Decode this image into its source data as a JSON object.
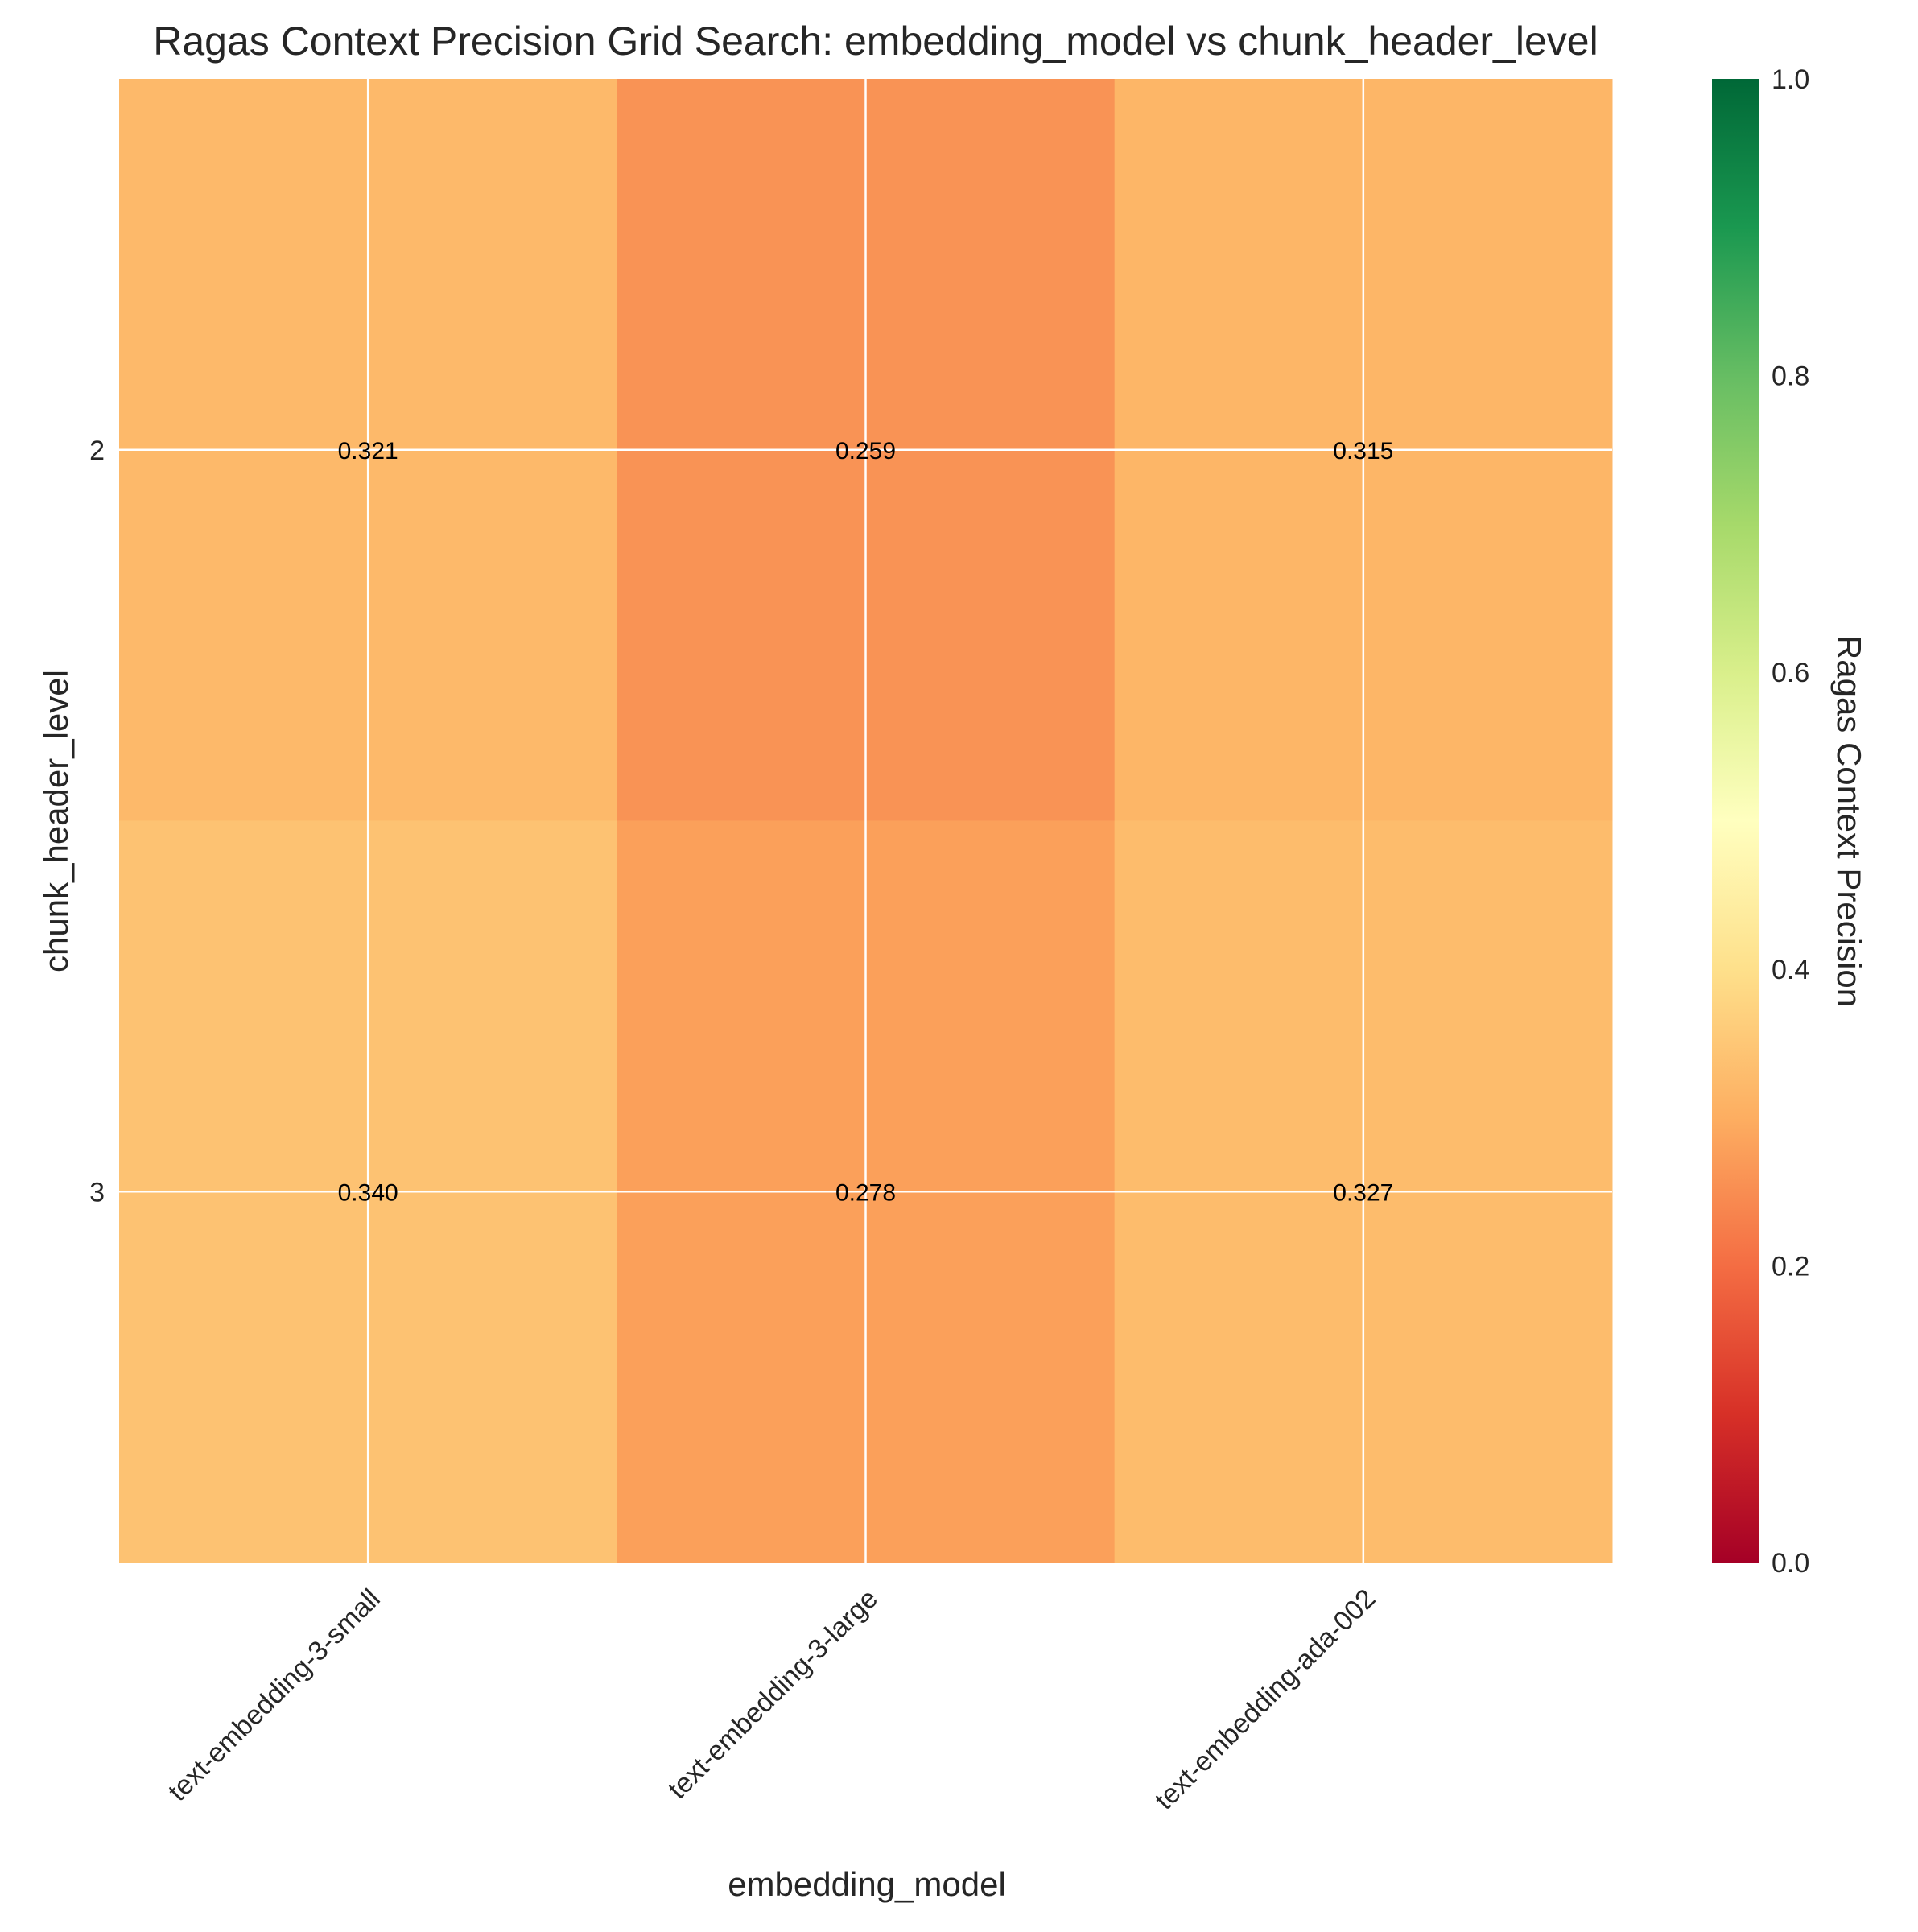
{
  "chart_data": {
    "type": "heatmap",
    "title": "Ragas Context Precision Grid Search: embedding_model vs chunk_header_level",
    "xlabel": "embedding_model",
    "ylabel": "chunk_header_level",
    "x_categories": [
      "text-embedding-3-small",
      "text-embedding-3-large",
      "text-embedding-ada-002"
    ],
    "y_categories": [
      "2",
      "3"
    ],
    "values": [
      [
        0.321,
        0.259,
        0.315
      ],
      [
        0.34,
        0.278,
        0.327
      ]
    ],
    "value_labels": [
      [
        "0.321",
        "0.259",
        "0.315"
      ],
      [
        "0.340",
        "0.278",
        "0.327"
      ]
    ],
    "colormap": "RdYlGn",
    "colorbar": {
      "label": "Ragas Context Precision",
      "range": [
        0.0,
        1.0
      ],
      "ticks": [
        "0.0",
        "0.2",
        "0.4",
        "0.6",
        "0.8",
        "1.0"
      ],
      "colors": [
        "#a50026",
        "#d73027",
        "#f46d43",
        "#fdae61",
        "#fee08b",
        "#ffffbf",
        "#d9ef8b",
        "#a6d96a",
        "#66bd63",
        "#1a9850",
        "#006837"
      ]
    },
    "grid": true,
    "grid_color": "#ffffff"
  }
}
